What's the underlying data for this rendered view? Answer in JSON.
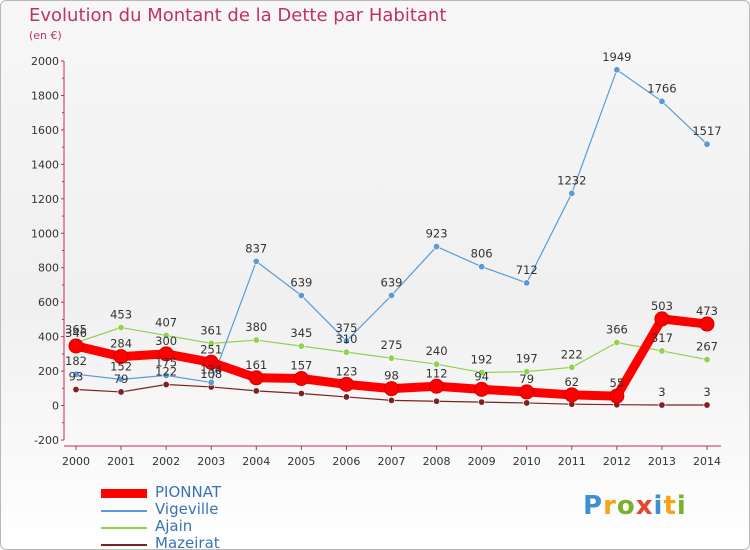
{
  "title": "Evolution du Montant de la Dette par Habitant",
  "subtitle": "(en €)",
  "logo": {
    "text": "Proxiti",
    "colors": [
      "#3f8fd0",
      "#f7a21b",
      "#7ab02f",
      "#e8432d",
      "#3f8fd0",
      "#f7a21b",
      "#7ab02f"
    ]
  },
  "chart_data": {
    "type": "line",
    "x": [
      2000,
      2001,
      2002,
      2003,
      2004,
      2005,
      2006,
      2007,
      2008,
      2009,
      2010,
      2011,
      2012,
      2013,
      2014
    ],
    "ylim": [
      -200,
      2000
    ],
    "yticks": [
      -200,
      0,
      200,
      400,
      600,
      800,
      1000,
      1200,
      1400,
      1600,
      1800,
      2000
    ],
    "grid": false,
    "legend_position": "bottom-left",
    "series": [
      {
        "name": "PIONNAT",
        "color": "#ff0000",
        "values": [
          346,
          284,
          300,
          251,
          161,
          157,
          123,
          98,
          112,
          94,
          79,
          62,
          55,
          503,
          473
        ],
        "labels": [
          "346",
          "284",
          "300",
          "251",
          "161",
          "157",
          "123",
          "98",
          "112",
          "94",
          "79",
          "62",
          "55",
          "503",
          "473"
        ]
      },
      {
        "name": "Vigeville",
        "color": "#5b9bd5",
        "values": [
          182,
          152,
          175,
          134,
          837,
          639,
          375,
          639,
          923,
          806,
          712,
          1232,
          1949,
          1766,
          1517
        ],
        "labels": [
          "182",
          "152",
          "175",
          "134",
          "837",
          "639",
          "375",
          "639",
          "923",
          "806",
          "712",
          "1232",
          "1949",
          "1766",
          "1517"
        ]
      },
      {
        "name": "Ajain",
        "color": "#92d050",
        "values": [
          365,
          453,
          407,
          361,
          380,
          345,
          310,
          275,
          240,
          192,
          197,
          222,
          366,
          317,
          267
        ],
        "labels": [
          "365",
          "453",
          "407",
          "361",
          "380",
          "345",
          "310",
          "275",
          "240",
          "192",
          "197",
          "222",
          "366",
          "317",
          "267"
        ]
      },
      {
        "name": "Mazeirat",
        "color": "#7b2222",
        "values": [
          93,
          79,
          122,
          108,
          85,
          70,
          50,
          30,
          25,
          20,
          15,
          8,
          5,
          3,
          3
        ],
        "labels": [
          "93",
          "79",
          "122",
          "108",
          "",
          "",
          "",
          "",
          "",
          "",
          "",
          "",
          "",
          "3",
          "3"
        ]
      }
    ]
  }
}
